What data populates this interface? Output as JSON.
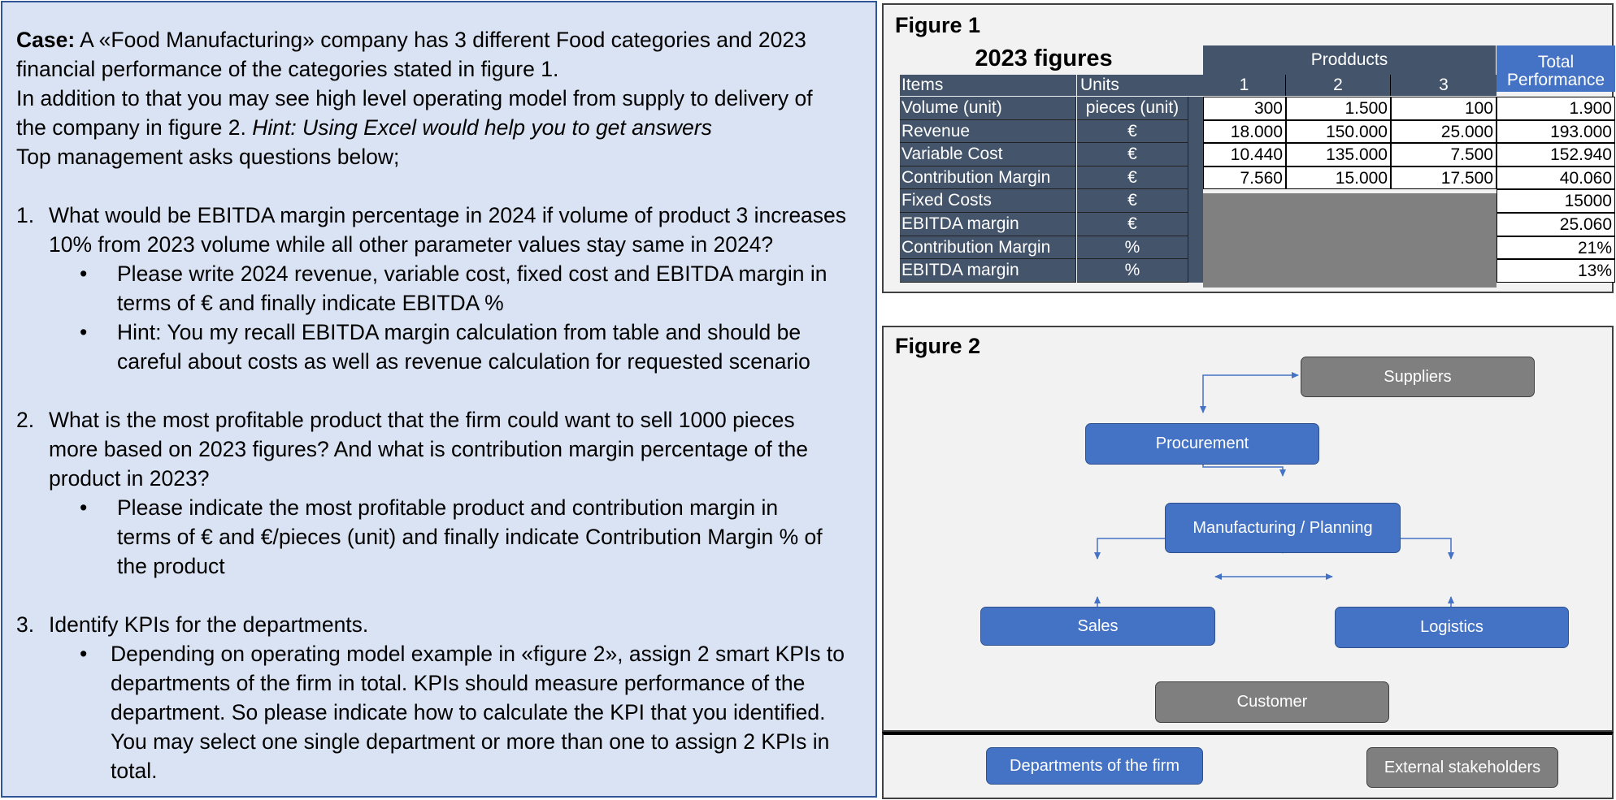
{
  "case": {
    "intro_label": "Case:",
    "intro_text": " A «Food Manufacturing» company has 3 different Food categories and 2023",
    "line2": "financial performance of the categories stated in figure 1.",
    "line3": "In addition to that you may see high level operating model from supply to delivery of",
    "line4_normal": "the company in figure 2. ",
    "line4_italic": "Hint: Using Excel would help you to get answers",
    "line5": "Top management asks questions below;",
    "questions": [
      {
        "num": "1.",
        "lines": [
          "What would be EBITDA margin percentage in 2024 if volume of product 3 increases",
          "10% from 2023 volume while all other parameter values stay same in 2024?"
        ],
        "bullets": [
          [
            "Please write 2024 revenue, variable cost, fixed cost and EBITDA margin in",
            "terms of € and finally indicate EBITDA %"
          ],
          [
            "Hint: You my recall EBITDA margin calculation from table and should be",
            "careful about costs as well as revenue calculation for requested scenario"
          ]
        ]
      },
      {
        "num": "2.",
        "lines": [
          "What is the most profitable product that the firm could want to sell 1000 pieces",
          "more based on 2023 figures? And what is contribution margin percentage of the",
          "product in 2023?"
        ],
        "bullets": [
          [
            "Please indicate the most profitable product and contribution margin in",
            "terms of € and €/pieces (unit) and finally indicate Contribution Margin % of",
            "the product"
          ]
        ]
      },
      {
        "num": "3.",
        "lines": [
          "Identify KPIs for the departments."
        ],
        "bullets": [
          [
            "Depending on operating model example in «figure 2», assign 2 smart KPIs to",
            "departments of the firm in total. KPIs should measure performance of the",
            "department. So please indicate how to calculate the KPI that you identified.",
            "You may select one single department or more than one to assign 2 KPIs in",
            "total."
          ]
        ]
      }
    ],
    "bullet_symbol": "•"
  },
  "figure1": {
    "title": "Figure 1",
    "table_title": "2023 figures",
    "products_header": "Prodducts",
    "total_header_1": "Total",
    "total_header_2": "Performance",
    "col_items": "Items",
    "col_units": "Units",
    "product_cols": [
      "1",
      "2",
      "3"
    ],
    "rows": [
      {
        "item": "Volume (unit)",
        "unit": "pieces (unit)",
        "p1": "300",
        "p2": "1.500",
        "p3": "100",
        "total": "1.900"
      },
      {
        "item": "Revenue",
        "unit": "€",
        "p1": "18.000",
        "p2": "150.000",
        "p3": "25.000",
        "total": "193.000"
      },
      {
        "item": "Variable Cost",
        "unit": "€",
        "p1": "10.440",
        "p2": "135.000",
        "p3": "7.500",
        "total": "152.940"
      },
      {
        "item": "Contribution Margin",
        "unit": "€",
        "p1": "7.560",
        "p2": "15.000",
        "p3": "17.500",
        "total": "40.060"
      },
      {
        "item": "Fixed Costs",
        "unit": "€",
        "total": "15000"
      },
      {
        "item": "EBITDA margin",
        "unit": "€",
        "total": "25.060"
      },
      {
        "item": "Contribution Margin",
        "unit": "%",
        "total": "21%"
      },
      {
        "item": "EBITDA margin",
        "unit": "%",
        "total": "13%"
      }
    ]
  },
  "figure2": {
    "title": "Figure 2",
    "nodes": {
      "suppliers": "Suppliers",
      "procurement": "Procurement",
      "manufacturing": "Manufacturing / Planning",
      "sales": "Sales",
      "logistics": "Logistics",
      "customer": "Customer"
    },
    "legend": {
      "departments": "Departments of the firm",
      "external": "External stakeholders"
    },
    "colors": {
      "department": "#4472c4",
      "external": "#7f7f7f",
      "connector": "#4472c4"
    }
  }
}
